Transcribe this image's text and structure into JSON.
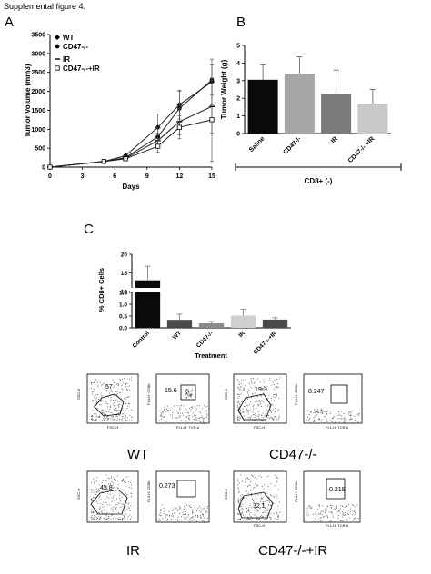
{
  "figure_title": "Supplemental figure 4.",
  "panels": {
    "a": "A",
    "b": "B",
    "c": "C"
  },
  "flow": {
    "labels": {
      "wt": "WT",
      "ko": "CD47-/-",
      "ir": "IR",
      "koir": "CD47-/-+IR"
    },
    "gate_values": {
      "wt_left": "57",
      "wt_right": "15.6",
      "ko_left": "19.3",
      "ko_right": "0.247",
      "ir_left": "45.8",
      "ir_right": "0.273",
      "koir_left": "32.1",
      "koir_right": "0.219"
    },
    "axes": {
      "ssc": "SSC-H",
      "fsc": "FSC-H",
      "fl4": "FL4-H: CD8b",
      "fl1": "FL1-H: TCR-b"
    }
  },
  "chart_data": [
    {
      "type": "line",
      "xlabel": "Days",
      "ylabel": "Tumor Volume (mm3)",
      "xlim": [
        0,
        15
      ],
      "ylim": [
        0,
        3500
      ],
      "xticks": [
        "0",
        "3",
        "6",
        "9",
        "12",
        "15"
      ],
      "yticks": [
        "0",
        "500",
        "1000",
        "1500",
        "2000",
        "2500",
        "3000",
        "3500"
      ],
      "x": [
        0,
        5,
        7,
        10,
        12,
        15
      ],
      "series": [
        {
          "name": "WT",
          "values": [
            0,
            150,
            300,
            1050,
            1650,
            2250
          ],
          "errors": [
            0,
            20,
            60,
            350,
            380,
            600
          ]
        },
        {
          "name": "CD47-/-",
          "values": [
            0,
            150,
            250,
            800,
            1550,
            2300
          ],
          "errors": [
            0,
            20,
            40,
            250,
            450,
            400
          ]
        },
        {
          "name": "IR",
          "values": [
            0,
            150,
            230,
            700,
            1200,
            1600
          ],
          "errors": [
            0,
            15,
            40,
            200,
            350,
            700
          ]
        },
        {
          "name": "CD47-/-+IR",
          "values": [
            0,
            150,
            220,
            550,
            1050,
            1250
          ],
          "errors": [
            0,
            15,
            30,
            150,
            300,
            1100
          ]
        }
      ]
    },
    {
      "type": "bar",
      "ylabel": "Tumor Weight (g)",
      "xlabel": "CD8+ (-)",
      "ylim": [
        0,
        5
      ],
      "yticks": [
        "0",
        "1",
        "2",
        "3",
        "4",
        "5"
      ],
      "categories": [
        "Saline",
        "CD47-/-",
        "IR",
        "CD47-/- +IR"
      ],
      "values": [
        3.05,
        3.4,
        2.25,
        1.7
      ],
      "errors": [
        0.85,
        0.95,
        1.35,
        0.8
      ],
      "colors": [
        "#0a0a0a",
        "#a6a6a6",
        "#7a7a7a",
        "#c8c8c8"
      ]
    },
    {
      "type": "bar",
      "ylabel": "% CD8+ Cells",
      "xlabel": "Treatment",
      "ylim": [
        0,
        20
      ],
      "yticks": [
        "0.0",
        "0.5",
        "1.0",
        "1.5",
        "10",
        "15",
        "20"
      ],
      "categories": [
        "Control",
        "WT",
        "CD47-/-",
        "IR",
        "CD47-/-+IR"
      ],
      "values": [
        13,
        0.34,
        0.19,
        0.52,
        0.35
      ],
      "errors": [
        3.8,
        0.24,
        0.08,
        0.27,
        0.08
      ],
      "colors": [
        "#0a0a0a",
        "#4a4a4a",
        "#8a8a8a",
        "#cfcfcf",
        "#4a4a4a"
      ]
    }
  ]
}
